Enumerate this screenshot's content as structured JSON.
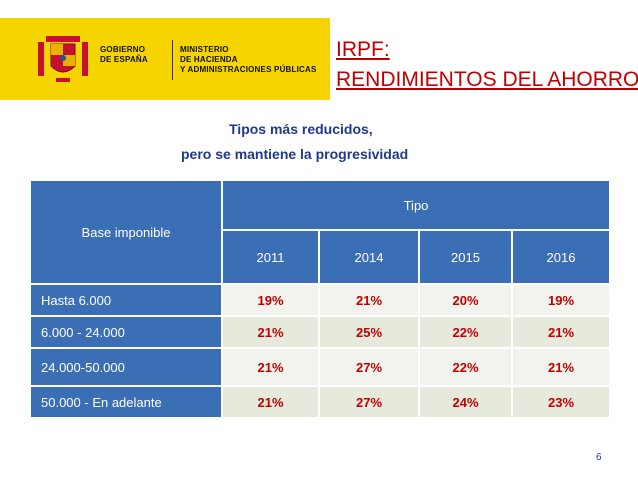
{
  "logo": {
    "gov_line1": "GOBIERNO",
    "gov_line2": "DE ESPAÑA",
    "min_line1": "MINISTERIO",
    "min_line2": "DE HACIENDA",
    "min_line3": "Y ADMINISTRACIONES PÚBLICAS"
  },
  "title": {
    "line1": "IRPF:",
    "line2": "RENDIMIENTOS DEL AHORRO"
  },
  "subtitle": {
    "line1": "Tipos más reducidos,",
    "line2": "pero se mantiene la progresividad"
  },
  "table": {
    "base_header": "Base imponible",
    "tipo_header": "Tipo",
    "years": [
      "2011",
      "2014",
      "2015",
      "2016"
    ],
    "rows": [
      {
        "label": "Hasta 6.000",
        "values": [
          "19%",
          "21%",
          "20%",
          "19%"
        ]
      },
      {
        "label": "6.000 - 24.000",
        "values": [
          "21%",
          "25%",
          "22%",
          "21%"
        ]
      },
      {
        "label": "24.000-50.000",
        "values": [
          "21%",
          "27%",
          "22%",
          "21%"
        ]
      },
      {
        "label": "50.000 - En adelante",
        "values": [
          "21%",
          "27%",
          "24%",
          "23%"
        ]
      }
    ]
  },
  "page_number": "6",
  "colors": {
    "accent_yellow": "#f5d400",
    "header_blue": "#3b6fb5",
    "value_red": "#c00000",
    "subtitle_blue": "#1f3a8a"
  }
}
